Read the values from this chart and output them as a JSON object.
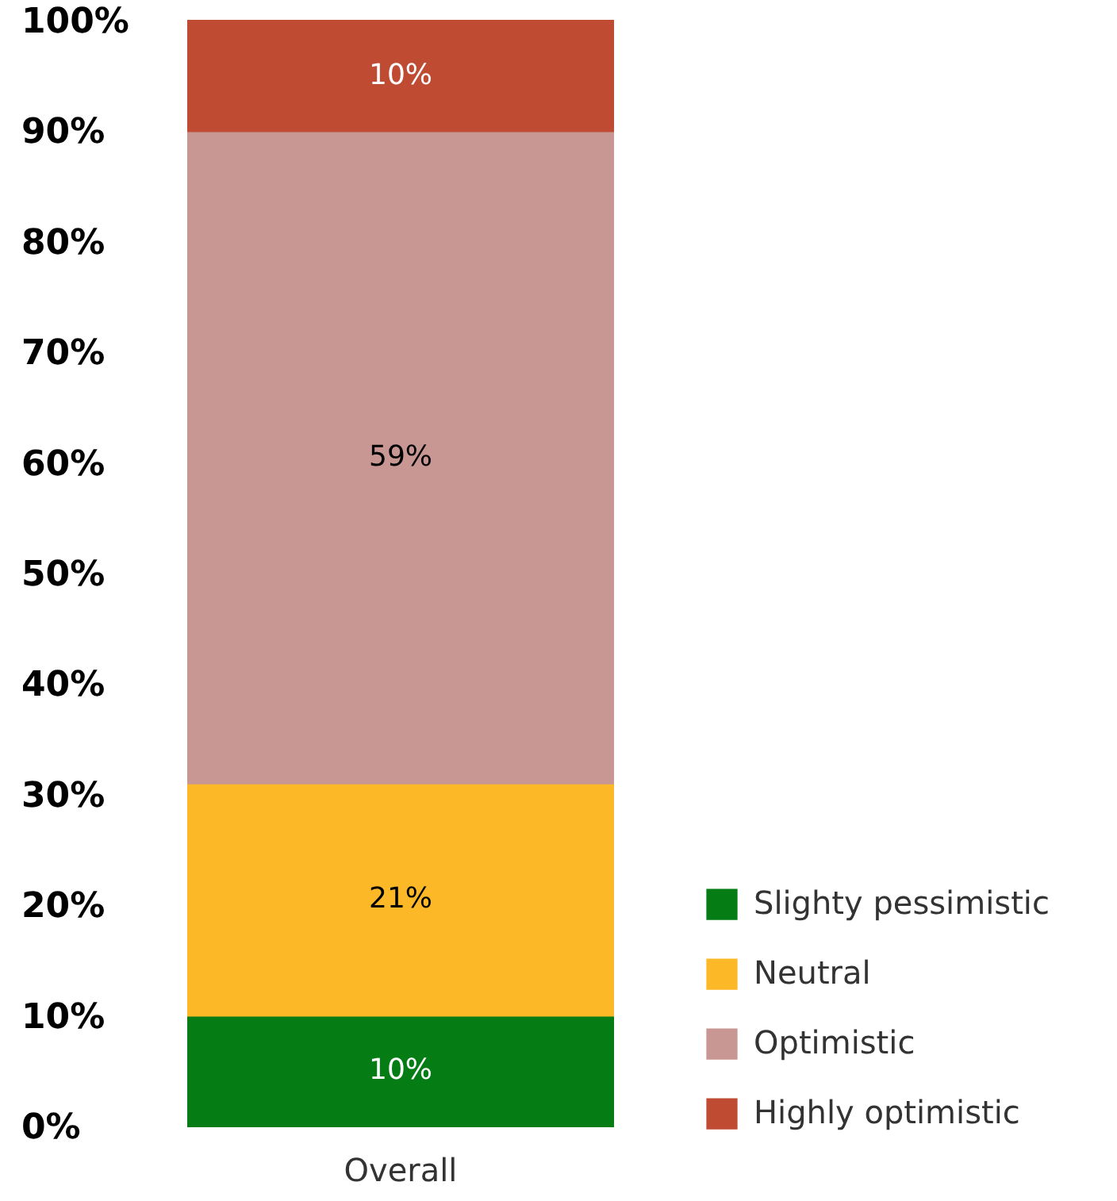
{
  "chart_data": {
    "type": "bar",
    "stacked": true,
    "categories": [
      "Overall"
    ],
    "series": [
      {
        "name": "Slighty pessimistic",
        "color": "#067d14",
        "values": [
          10
        ],
        "value_labels": [
          "10%"
        ]
      },
      {
        "name": "Neutral",
        "color": "#fdb827",
        "values": [
          21
        ],
        "value_labels": [
          "21%"
        ]
      },
      {
        "name": "Optimistic",
        "color": "#c99793",
        "values": [
          59
        ],
        "value_labels": [
          "59%"
        ]
      },
      {
        "name": "Highly optimistic",
        "color": "#c04b33",
        "values": [
          10
        ],
        "value_labels": [
          "10%"
        ]
      }
    ],
    "ylim": [
      0,
      100
    ],
    "yticks": [
      {
        "value": 0,
        "label": "0%"
      },
      {
        "value": 10,
        "label": "10%"
      },
      {
        "value": 20,
        "label": "20%"
      },
      {
        "value": 30,
        "label": "30%"
      },
      {
        "value": 40,
        "label": "40%"
      },
      {
        "value": 50,
        "label": "50%"
      },
      {
        "value": 60,
        "label": "60%"
      },
      {
        "value": 70,
        "label": "70%"
      },
      {
        "value": 80,
        "label": "80%"
      },
      {
        "value": 90,
        "label": "90%"
      },
      {
        "value": 100,
        "label": "100%"
      }
    ],
    "legend": "bottom right",
    "grid": false
  }
}
